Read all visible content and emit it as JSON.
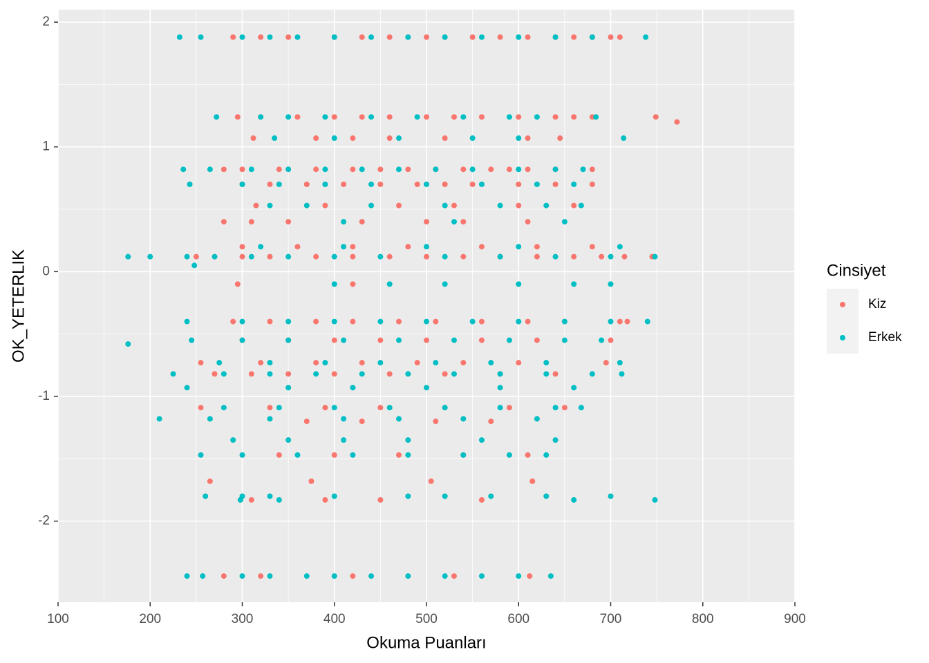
{
  "chart_data": {
    "type": "scatter",
    "x_label": "Okuma Puanları",
    "y_label": "OK_YETERLIK",
    "legend_title": "Cinsiyet",
    "legend": "right",
    "grid": true,
    "background": "#ebebeb",
    "xlim": [
      100,
      900
    ],
    "ylim": [
      -2.65,
      2.1
    ],
    "xticks": [
      100,
      200,
      300,
      400,
      500,
      600,
      700,
      800,
      900
    ],
    "yticks": [
      -2,
      -1,
      0,
      1,
      2
    ],
    "series": [
      {
        "name": "Kiz",
        "color": "#F8766D",
        "x": [
          290,
          320,
          350,
          400,
          430,
          460,
          500,
          520,
          550,
          580,
          610,
          640,
          660,
          680,
          700,
          710,
          295,
          320,
          360,
          400,
          430,
          460,
          500,
          530,
          560,
          600,
          640,
          660,
          680,
          749,
          772,
          312,
          380,
          420,
          460,
          520,
          610,
          645,
          280,
          300,
          340,
          380,
          420,
          450,
          480,
          510,
          540,
          570,
          590,
          610,
          640,
          680,
          300,
          330,
          370,
          410,
          450,
          490,
          520,
          550,
          600,
          640,
          680,
          315,
          390,
          470,
          530,
          600,
          660,
          280,
          310,
          350,
          430,
          500,
          540,
          610,
          300,
          360,
          420,
          480,
          560,
          620,
          680,
          250,
          270,
          300,
          330,
          380,
          420,
          460,
          500,
          540,
          580,
          620,
          660,
          690,
          715,
          745,
          295,
          420,
          290,
          330,
          380,
          420,
          470,
          510,
          560,
          610,
          650,
          710,
          718,
          300,
          350,
          400,
          450,
          500,
          560,
          620,
          700,
          255,
          320,
          380,
          430,
          490,
          540,
          600,
          695,
          270,
          310,
          350,
          400,
          460,
          520,
          580,
          640,
          255,
          330,
          390,
          450,
          520,
          590,
          650,
          370,
          430,
          510,
          570,
          340,
          400,
          470,
          540,
          610,
          265,
          375,
          505,
          615,
          310,
          390,
          450,
          560,
          280,
          320,
          420,
          530,
          612
        ],
        "values": [
          1.88,
          1.88,
          1.88,
          1.88,
          1.88,
          1.88,
          1.88,
          1.88,
          1.88,
          1.88,
          1.88,
          1.88,
          1.88,
          1.88,
          1.88,
          1.88,
          1.24,
          1.24,
          1.24,
          1.24,
          1.24,
          1.24,
          1.24,
          1.24,
          1.24,
          1.24,
          1.24,
          1.24,
          1.24,
          1.24,
          1.2,
          1.07,
          1.07,
          1.07,
          1.07,
          1.07,
          1.07,
          1.07,
          0.82,
          0.82,
          0.82,
          0.82,
          0.82,
          0.82,
          0.82,
          0.82,
          0.82,
          0.82,
          0.82,
          0.82,
          0.82,
          0.82,
          0.7,
          0.7,
          0.7,
          0.7,
          0.7,
          0.7,
          0.7,
          0.7,
          0.7,
          0.7,
          0.7,
          0.53,
          0.53,
          0.53,
          0.53,
          0.53,
          0.53,
          0.4,
          0.4,
          0.4,
          0.4,
          0.4,
          0.4,
          0.4,
          0.2,
          0.2,
          0.2,
          0.2,
          0.2,
          0.2,
          0.2,
          0.12,
          0.12,
          0.12,
          0.12,
          0.12,
          0.12,
          0.12,
          0.12,
          0.12,
          0.12,
          0.12,
          0.12,
          0.12,
          0.12,
          0.12,
          -0.1,
          -0.1,
          -0.4,
          -0.4,
          -0.4,
          -0.4,
          -0.4,
          -0.4,
          -0.4,
          -0.4,
          -0.4,
          -0.4,
          -0.4,
          -0.55,
          -0.55,
          -0.55,
          -0.55,
          -0.55,
          -0.55,
          -0.55,
          -0.55,
          -0.73,
          -0.73,
          -0.73,
          -0.73,
          -0.73,
          -0.73,
          -0.73,
          -0.73,
          -0.82,
          -0.82,
          -0.82,
          -0.82,
          -0.82,
          -0.82,
          -0.82,
          -0.82,
          -1.09,
          -1.09,
          -1.09,
          -1.09,
          -1.09,
          -1.09,
          -1.09,
          -1.2,
          -1.2,
          -1.2,
          -1.2,
          -1.47,
          -1.47,
          -1.47,
          -1.47,
          -1.47,
          -1.68,
          -1.68,
          -1.68,
          -1.68,
          -1.83,
          -1.83,
          -1.83,
          -1.83,
          -2.44,
          -2.44,
          -2.44,
          -2.44,
          -2.44
        ]
      },
      {
        "name": "Erkek",
        "color": "#00BFC4",
        "x": [
          232,
          255,
          300,
          330,
          360,
          400,
          440,
          480,
          520,
          560,
          600,
          640,
          680,
          738,
          272,
          320,
          350,
          390,
          440,
          490,
          540,
          590,
          620,
          684,
          335,
          400,
          470,
          550,
          600,
          714,
          236,
          265,
          310,
          350,
          390,
          430,
          470,
          510,
          550,
          600,
          640,
          670,
          243,
          300,
          340,
          390,
          440,
          500,
          560,
          620,
          660,
          330,
          370,
          440,
          520,
          580,
          630,
          668,
          410,
          530,
          650,
          320,
          410,
          500,
          600,
          710,
          176,
          200,
          240,
          270,
          310,
          350,
          400,
          450,
          520,
          580,
          640,
          700,
          748,
          248,
          400,
          460,
          520,
          600,
          660,
          700,
          240,
          300,
          350,
          400,
          450,
          500,
          550,
          600,
          650,
          700,
          740,
          245,
          300,
          350,
          410,
          470,
          530,
          590,
          650,
          690,
          176,
          275,
          330,
          390,
          450,
          510,
          570,
          630,
          710,
          225,
          280,
          330,
          380,
          430,
          480,
          530,
          580,
          630,
          680,
          712,
          240,
          350,
          420,
          500,
          580,
          660,
          280,
          340,
          400,
          460,
          520,
          580,
          640,
          668,
          210,
          265,
          330,
          410,
          470,
          540,
          620,
          290,
          350,
          410,
          480,
          560,
          640,
          255,
          300,
          360,
          420,
          480,
          540,
          590,
          630,
          260,
          300,
          330,
          400,
          480,
          520,
          570,
          630,
          700,
          298,
          340,
          660,
          748,
          240,
          257,
          300,
          330,
          370,
          400,
          440,
          480,
          520,
          560,
          600,
          635
        ],
        "values": [
          1.88,
          1.88,
          1.88,
          1.88,
          1.88,
          1.88,
          1.88,
          1.88,
          1.88,
          1.88,
          1.88,
          1.88,
          1.88,
          1.88,
          1.24,
          1.24,
          1.24,
          1.24,
          1.24,
          1.24,
          1.24,
          1.24,
          1.24,
          1.24,
          1.07,
          1.07,
          1.07,
          1.07,
          1.07,
          1.07,
          0.82,
          0.82,
          0.82,
          0.82,
          0.82,
          0.82,
          0.82,
          0.82,
          0.82,
          0.82,
          0.82,
          0.82,
          0.7,
          0.7,
          0.7,
          0.7,
          0.7,
          0.7,
          0.7,
          0.7,
          0.7,
          0.53,
          0.53,
          0.53,
          0.53,
          0.53,
          0.53,
          0.53,
          0.4,
          0.4,
          0.4,
          0.2,
          0.2,
          0.2,
          0.2,
          0.2,
          0.12,
          0.12,
          0.12,
          0.12,
          0.12,
          0.12,
          0.12,
          0.12,
          0.12,
          0.12,
          0.12,
          0.12,
          0.12,
          0.05,
          -0.1,
          -0.1,
          -0.1,
          -0.1,
          -0.1,
          -0.1,
          -0.4,
          -0.4,
          -0.4,
          -0.4,
          -0.4,
          -0.4,
          -0.4,
          -0.4,
          -0.4,
          -0.4,
          -0.4,
          -0.55,
          -0.55,
          -0.55,
          -0.55,
          -0.55,
          -0.55,
          -0.55,
          -0.55,
          -0.55,
          -0.58,
          -0.73,
          -0.73,
          -0.73,
          -0.73,
          -0.73,
          -0.73,
          -0.73,
          -0.73,
          -0.82,
          -0.82,
          -0.82,
          -0.82,
          -0.82,
          -0.82,
          -0.82,
          -0.82,
          -0.82,
          -0.82,
          -0.82,
          -0.93,
          -0.93,
          -0.93,
          -0.93,
          -0.93,
          -0.93,
          -1.09,
          -1.09,
          -1.09,
          -1.09,
          -1.09,
          -1.09,
          -1.09,
          -1.09,
          -1.18,
          -1.18,
          -1.18,
          -1.18,
          -1.18,
          -1.18,
          -1.18,
          -1.35,
          -1.35,
          -1.35,
          -1.35,
          -1.35,
          -1.35,
          -1.47,
          -1.47,
          -1.47,
          -1.47,
          -1.47,
          -1.47,
          -1.47,
          -1.47,
          -1.8,
          -1.8,
          -1.8,
          -1.8,
          -1.8,
          -1.8,
          -1.8,
          -1.8,
          -1.8,
          -1.83,
          -1.83,
          -1.83,
          -1.83,
          -2.44,
          -2.44,
          -2.44,
          -2.44,
          -2.44,
          -2.44,
          -2.44,
          -2.44,
          -2.44,
          -2.44,
          -2.44,
          -2.44
        ]
      }
    ]
  }
}
